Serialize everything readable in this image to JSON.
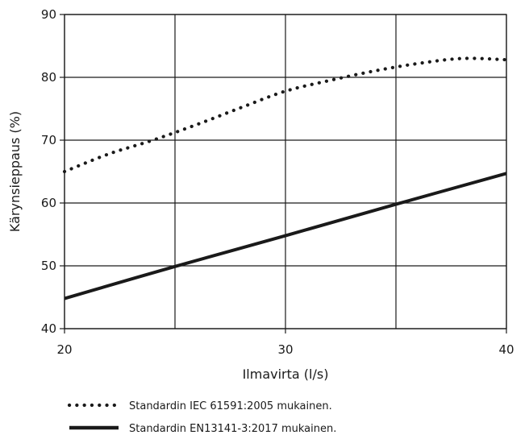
{
  "chart_data": {
    "type": "line",
    "xlabel": "Ilmavirta (l/s)",
    "ylabel": "Kärynsieppaus (%)",
    "xlim": [
      20,
      40
    ],
    "ylim": [
      40,
      90
    ],
    "x_ticks": [
      20,
      30,
      40
    ],
    "y_ticks": [
      40,
      50,
      60,
      70,
      80,
      90
    ],
    "grid": true,
    "legend_position": "bottom",
    "series": [
      {
        "name": "Standardin IEC 61591:2005 mukainen.",
        "style": "dotted",
        "color": "#1a1a1a",
        "x": [
          20,
          22,
          24,
          26,
          28,
          30,
          32,
          34,
          36,
          38,
          40
        ],
        "y": [
          65,
          67.8,
          70,
          72.5,
          75.2,
          77.8,
          79.5,
          81,
          82.2,
          83,
          82.8
        ]
      },
      {
        "name": "Standardin EN13141-3:2017 mukainen.",
        "style": "solid",
        "color": "#1a1a1a",
        "x": [
          20,
          25,
          30,
          35,
          40
        ],
        "y": [
          44.8,
          49.9,
          54.8,
          59.8,
          64.7
        ]
      }
    ]
  }
}
